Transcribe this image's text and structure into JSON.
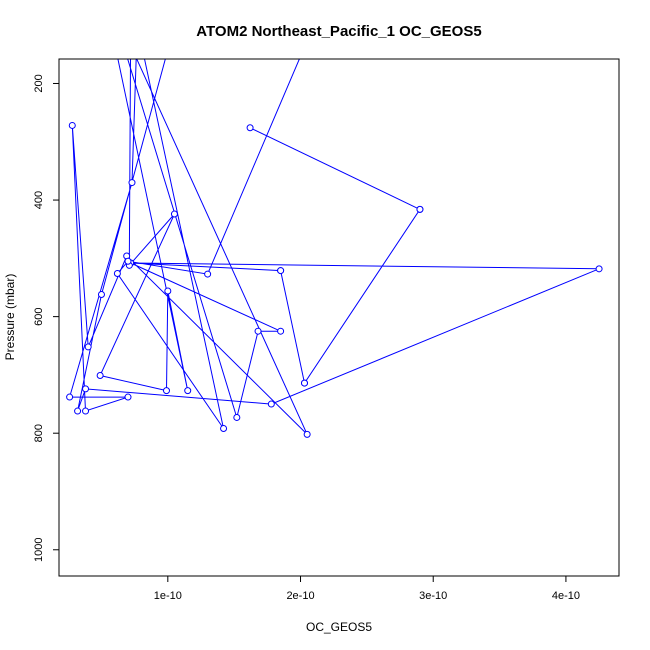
{
  "chart_data": {
    "type": "line",
    "title": "ATOM2 Northeast_Pacific_1 OC_GEOS5",
    "xlabel": "OC_GEOS5",
    "ylabel": "Pressure (mbar)",
    "xlim": [
      1.8e-11,
      4.4e-10
    ],
    "ylim": [
      1045,
      158
    ],
    "y_reversed": true,
    "grid": false,
    "x_ticks": [
      {
        "value": 1e-10,
        "label": "1e-10"
      },
      {
        "value": 2e-10,
        "label": "2e-10"
      },
      {
        "value": 3e-10,
        "label": "3e-10"
      },
      {
        "value": 4e-10,
        "label": "4e-10"
      }
    ],
    "y_ticks": [
      {
        "value": 200,
        "label": "200"
      },
      {
        "value": 400,
        "label": "400"
      },
      {
        "value": 600,
        "label": "600"
      },
      {
        "value": 800,
        "label": "800"
      },
      {
        "value": 1000,
        "label": "1000"
      }
    ],
    "series": [
      {
        "color": "#0000ff",
        "marker": "open-circle",
        "points": [
          {
            "x": 1.05e-10,
            "y": 100,
            "marker": false
          },
          {
            "x": 5e-11,
            "y": 562
          },
          {
            "x": 3.2e-11,
            "y": 762
          },
          {
            "x": 3.8e-11,
            "y": 724
          },
          {
            "x": 1.78e-10,
            "y": 750
          },
          {
            "x": 4.25e-10,
            "y": 518
          },
          {
            "x": 7.2e-11,
            "y": 508
          },
          {
            "x": 1.85e-10,
            "y": 521
          },
          {
            "x": 2.03e-10,
            "y": 714
          },
          {
            "x": 2.9e-10,
            "y": 416
          },
          {
            "x": 1.62e-10,
            "y": 276
          },
          {
            "x": 2.9e-10,
            "y": 416
          },
          {
            "x": 2.03e-10,
            "y": 714
          },
          {
            "x": 1.85e-10,
            "y": 521
          },
          {
            "x": 7.2e-11,
            "y": 508
          },
          {
            "x": 1.85e-10,
            "y": 625
          },
          {
            "x": 1.68e-10,
            "y": 625
          },
          {
            "x": 1.52e-10,
            "y": 773
          },
          {
            "x": 6.2e-11,
            "y": 100,
            "marker": false
          },
          {
            "x": 7.2e-11,
            "y": 100,
            "marker": false
          },
          {
            "x": 7.1e-11,
            "y": 512
          },
          {
            "x": 1.05e-10,
            "y": 424
          },
          {
            "x": 4.9e-11,
            "y": 701
          },
          {
            "x": 9.9e-11,
            "y": 727
          },
          {
            "x": 1e-10,
            "y": 556
          },
          {
            "x": 1.15e-10,
            "y": 727
          },
          {
            "x": 5.7e-11,
            "y": 100,
            "marker": false
          },
          {
            "x": 6.5e-11,
            "y": 100,
            "marker": false
          },
          {
            "x": 2.05e-10,
            "y": 802
          },
          {
            "x": 6.9e-11,
            "y": 496
          },
          {
            "x": 4e-11,
            "y": 652
          },
          {
            "x": 2.8e-11,
            "y": 272
          },
          {
            "x": 3.8e-11,
            "y": 762
          },
          {
            "x": 7e-11,
            "y": 738
          },
          {
            "x": 2.6e-11,
            "y": 738
          },
          {
            "x": 7.3e-11,
            "y": 370
          },
          {
            "x": 7.7e-11,
            "y": 100,
            "marker": false
          },
          {
            "x": 1.42e-10,
            "y": 792
          },
          {
            "x": 6.2e-11,
            "y": 526
          },
          {
            "x": 7e-11,
            "y": 505
          },
          {
            "x": 1.3e-10,
            "y": 527
          },
          {
            "x": 2.1e-10,
            "y": 100,
            "marker": false
          }
        ]
      }
    ]
  }
}
